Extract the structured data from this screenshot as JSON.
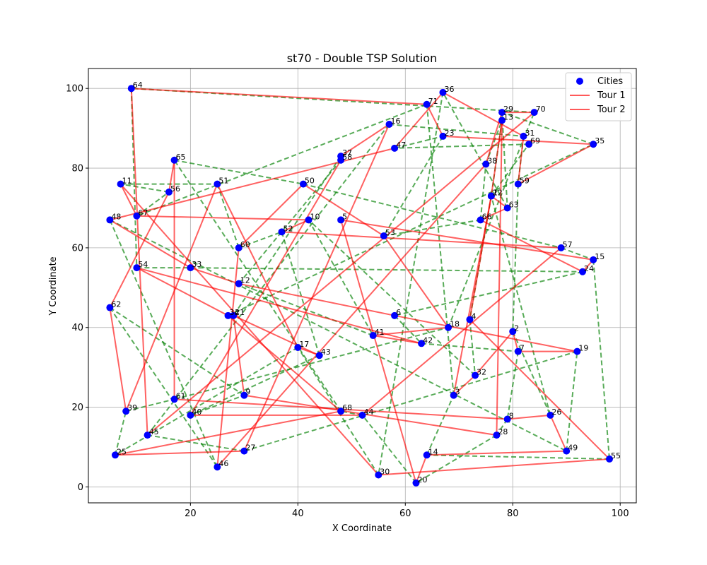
{
  "chart_data": {
    "type": "scatter",
    "title": "st70 - Double TSP Solution",
    "xlabel": "X Coordinate",
    "ylabel": "Y Coordinate",
    "xlim": [
      1,
      103
    ],
    "ylim": [
      -4,
      105
    ],
    "xticks": [
      20,
      40,
      60,
      80,
      100
    ],
    "yticks": [
      0,
      20,
      40,
      60,
      80,
      100
    ],
    "grid": true,
    "legend_position": "top-right",
    "colors": {
      "cities": "#0000ff",
      "tour1": "#ff0000",
      "tour2": "#008000"
    },
    "legend": [
      {
        "label": "Cities",
        "kind": "marker"
      },
      {
        "label": "Tour 1",
        "kind": "solid"
      },
      {
        "label": "Tour 2",
        "kind": "dashed"
      }
    ],
    "cities": [
      {
        "id": 1,
        "x": 76,
        "y": 73
      },
      {
        "id": 2,
        "x": 80,
        "y": 39
      },
      {
        "id": 3,
        "x": 69,
        "y": 23
      },
      {
        "id": 4,
        "x": 72,
        "y": 42
      },
      {
        "id": 5,
        "x": 48,
        "y": 67
      },
      {
        "id": 6,
        "x": 58,
        "y": 43
      },
      {
        "id": 7,
        "x": 81,
        "y": 34
      },
      {
        "id": 8,
        "x": 79,
        "y": 17
      },
      {
        "id": 9,
        "x": 30,
        "y": 23
      },
      {
        "id": 10,
        "x": 42,
        "y": 67
      },
      {
        "id": 11,
        "x": 7,
        "y": 76
      },
      {
        "id": 12,
        "x": 29,
        "y": 51
      },
      {
        "id": 13,
        "x": 78,
        "y": 92
      },
      {
        "id": 14,
        "x": 64,
        "y": 8
      },
      {
        "id": 15,
        "x": 95,
        "y": 57
      },
      {
        "id": 16,
        "x": 57,
        "y": 91
      },
      {
        "id": 17,
        "x": 40,
        "y": 35
      },
      {
        "id": 18,
        "x": 68,
        "y": 40
      },
      {
        "id": 19,
        "x": 92,
        "y": 34
      },
      {
        "id": 20,
        "x": 62,
        "y": 1
      },
      {
        "id": 21,
        "x": 28,
        "y": 43
      },
      {
        "id": 22,
        "x": 76,
        "y": 73
      },
      {
        "id": 23,
        "x": 67,
        "y": 88
      },
      {
        "id": 24,
        "x": 93,
        "y": 54
      },
      {
        "id": 25,
        "x": 6,
        "y": 8
      },
      {
        "id": 26,
        "x": 87,
        "y": 18
      },
      {
        "id": 27,
        "x": 30,
        "y": 9
      },
      {
        "id": 28,
        "x": 77,
        "y": 13
      },
      {
        "id": 29,
        "x": 78,
        "y": 94
      },
      {
        "id": 30,
        "x": 55,
        "y": 3
      },
      {
        "id": 31,
        "x": 82,
        "y": 88
      },
      {
        "id": 32,
        "x": 73,
        "y": 28
      },
      {
        "id": 33,
        "x": 20,
        "y": 55
      },
      {
        "id": 34,
        "x": 27,
        "y": 43
      },
      {
        "id": 35,
        "x": 95,
        "y": 86
      },
      {
        "id": 36,
        "x": 67,
        "y": 99
      },
      {
        "id": 37,
        "x": 48,
        "y": 83
      },
      {
        "id": 38,
        "x": 75,
        "y": 81
      },
      {
        "id": 39,
        "x": 8,
        "y": 19
      },
      {
        "id": 40,
        "x": 20,
        "y": 18
      },
      {
        "id": 41,
        "x": 54,
        "y": 38
      },
      {
        "id": 42,
        "x": 63,
        "y": 36
      },
      {
        "id": 43,
        "x": 44,
        "y": 33
      },
      {
        "id": 44,
        "x": 52,
        "y": 18
      },
      {
        "id": 45,
        "x": 12,
        "y": 13
      },
      {
        "id": 46,
        "x": 25,
        "y": 5
      },
      {
        "id": 47,
        "x": 58,
        "y": 85
      },
      {
        "id": 48,
        "x": 5,
        "y": 67
      },
      {
        "id": 49,
        "x": 90,
        "y": 9
      },
      {
        "id": 50,
        "x": 41,
        "y": 76
      },
      {
        "id": 51,
        "x": 25,
        "y": 76
      },
      {
        "id": 52,
        "x": 37,
        "y": 64
      },
      {
        "id": 53,
        "x": 56,
        "y": 63
      },
      {
        "id": 54,
        "x": 10,
        "y": 55
      },
      {
        "id": 55,
        "x": 98,
        "y": 7
      },
      {
        "id": 56,
        "x": 16,
        "y": 74
      },
      {
        "id": 57,
        "x": 89,
        "y": 60
      },
      {
        "id": 58,
        "x": 48,
        "y": 82
      },
      {
        "id": 59,
        "x": 81,
        "y": 76
      },
      {
        "id": 60,
        "x": 29,
        "y": 60
      },
      {
        "id": 61,
        "x": 17,
        "y": 22
      },
      {
        "id": 62,
        "x": 5,
        "y": 45
      },
      {
        "id": 63,
        "x": 79,
        "y": 70
      },
      {
        "id": 64,
        "x": 9,
        "y": 100
      },
      {
        "id": 65,
        "x": 17,
        "y": 82
      },
      {
        "id": 66,
        "x": 74,
        "y": 67
      },
      {
        "id": 67,
        "x": 10,
        "y": 68
      },
      {
        "id": 68,
        "x": 48,
        "y": 19
      },
      {
        "id": 69,
        "x": 83,
        "y": 86
      },
      {
        "id": 70,
        "x": 84,
        "y": 94
      },
      {
        "id": 71,
        "x": 64,
        "y": 96
      }
    ],
    "tour1": [
      64,
      71,
      23,
      35,
      59,
      31,
      36,
      47,
      48,
      33,
      12,
      6,
      19,
      7,
      2,
      32,
      3,
      22,
      63,
      66,
      24,
      15,
      5,
      20,
      14,
      49,
      26,
      8,
      61,
      65,
      56,
      62,
      39,
      51,
      17,
      43,
      21,
      9,
      28,
      13,
      1,
      4,
      55,
      30,
      11,
      67,
      10,
      52,
      57,
      44,
      40,
      58,
      37,
      16,
      27,
      25,
      68,
      34,
      54,
      42,
      41,
      18,
      53,
      50,
      60,
      46,
      38,
      29,
      70,
      45,
      64
    ],
    "tour2": [
      64,
      54,
      33,
      24,
      6,
      42,
      7,
      8,
      28,
      20,
      44,
      68,
      65,
      50,
      57,
      15,
      55,
      14,
      3,
      71,
      67,
      56,
      11,
      51,
      60,
      52,
      43,
      40,
      9,
      62,
      46,
      48,
      49,
      19,
      27,
      45,
      16,
      31,
      59,
      2,
      26,
      22,
      69,
      47,
      23,
      53,
      66,
      38,
      13,
      1,
      4,
      32,
      10,
      41,
      12,
      58,
      37,
      21,
      34,
      35,
      29,
      63,
      36,
      30,
      17,
      25,
      39,
      61,
      18,
      70,
      64
    ]
  }
}
